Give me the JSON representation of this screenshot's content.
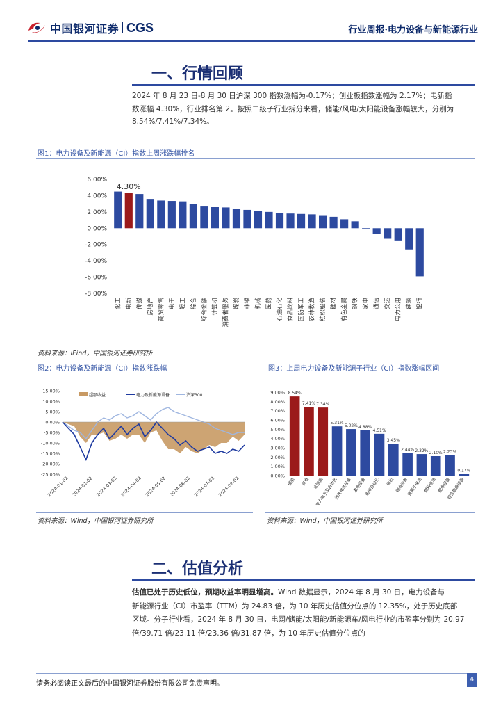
{
  "header": {
    "logo_cn": "中国银河证券",
    "logo_en": "CGS",
    "report_type": "行业周报·电力设备与新能源行业"
  },
  "section1": {
    "title": "一、行情回顾"
  },
  "para1": [
    "2024 年 8 月 23 日-8 月 30 日沪深 300 指数涨幅为-0.17%；创业板指数涨幅为 2.17%；电新指",
    "数涨幅 4.30%，行业排名第 2。按照二级子行业拆分来看，储能/风电/太阳能设备涨幅较大，分别为",
    "8.54%/7.41%/7.34%。"
  ],
  "fig1": {
    "caption": "图1：电力设备及新能源（CI）指数上周涨跌幅排名",
    "source": "资料来源：iFind，中国银河证券研究所"
  },
  "fig2": {
    "caption": "图2：电力设备及新能源（CI）指数涨跌幅",
    "source": "资料来源：Wind，中国银河证券研究所"
  },
  "fig3": {
    "caption": "图3：上周电力设备及新能源子行业（CI）指数涨幅区间",
    "source": "资料来源：Wind，中国银河证券研究所"
  },
  "section2": {
    "title": "二、估值分析"
  },
  "para2": {
    "lead": "估值已处于历史低位，预期收益率明显增高。",
    "lines": [
      "估值已处于历史低位，预期收益率明显增高。Wind 数据显示，2024 年 8 月 30 日，电力设备与",
      "新能源行业（CI）市盈率（TTM）为 24.83 倍，为 10 年历史估值分位点的 12.35%，处于历史底部",
      "区域。分子行业看，2024 年 8 月 30 日，电网/储能/太阳能/新能源车/风电行业的市盈率分别为 20.97",
      "倍/39.71 倍/23.11 倍/23.36 倍/31.87 倍，为 10 年历史估值分位点的"
    ]
  },
  "footer": {
    "disclaimer": "请务必阅读正文最后的中国银河证券股份有限公司免责声明。",
    "page": "4"
  },
  "colors": {
    "primary": "#2d4aa0",
    "highlight": "#9b1a1a",
    "band": "#c89a64",
    "line_index": "#1e3aa0",
    "line_hs300": "#9fb6e0"
  },
  "chart_data": [
    {
      "type": "bar",
      "categories": [
        "化工",
        "电新",
        "传媒",
        "房地产",
        "商贸零售",
        "电子",
        "轻工",
        "综合",
        "综合金融",
        "计算机",
        "消费者服务",
        "煤炭",
        "非银",
        "机械",
        "医药",
        "石油石化",
        "食品饮料",
        "国防军工",
        "农林牧渔",
        "纺织服装",
        "建材",
        "有色金属",
        "钢铁",
        "家电",
        "通信",
        "交运",
        "电力公用",
        "建筑",
        "银行"
      ],
      "values": [
        4.5,
        4.3,
        4.2,
        3.6,
        3.4,
        3.35,
        3.3,
        3.0,
        2.75,
        2.6,
        2.55,
        2.4,
        2.25,
        2.1,
        2.0,
        1.9,
        1.8,
        1.75,
        1.7,
        1.6,
        1.4,
        1.1,
        0.85,
        -0.1,
        -0.7,
        -1.3,
        -1.5,
        -2.6,
        -5.9
      ],
      "highlight_index": 1,
      "highlight_label": "4.30%",
      "yticks": [
        "6.00%",
        "4.00%",
        "2.00%",
        "0.00%",
        "-2.00%",
        "-4.00%",
        "-6.00%",
        "-8.00%"
      ],
      "ylim": [
        -8,
        6
      ]
    },
    {
      "type": "line",
      "legend": [
        "超额收益",
        "电力及新能源设备",
        "沪深300"
      ],
      "xticks": [
        "2024-01-02",
        "2024-02-02",
        "2024-03-02",
        "2024-04-02",
        "2024-05-02",
        "2024-06-02",
        "2024-07-02",
        "2024-08-02"
      ],
      "yticks": [
        "15.00%",
        "10.00%",
        "5.00%",
        "0.00%",
        "-5.00%",
        "-10.00%",
        "-15.00%",
        "-20.00%",
        "-25.00%"
      ],
      "ylim": [
        -25,
        15
      ],
      "series": [
        {
          "name": "电力及新能源设备",
          "values": [
            0,
            -3,
            -6,
            -12,
            -18,
            -10,
            -6,
            -3,
            -8,
            -5,
            -2,
            -6,
            -3,
            -1,
            -7,
            -4,
            0,
            -3,
            -6,
            -8,
            -11,
            -9,
            -12,
            -14,
            -13,
            -12,
            -15,
            -14,
            -15,
            -13,
            -14,
            -11
          ]
        },
        {
          "name": "沪深300",
          "values": [
            0,
            -2,
            -4,
            -5,
            -8,
            -4,
            0,
            2,
            1,
            3,
            4,
            2,
            3,
            5,
            3,
            1,
            4,
            6,
            7,
            5,
            4,
            3,
            2,
            1,
            0,
            -1,
            -3,
            -4,
            -5,
            -6,
            -5,
            -5
          ]
        },
        {
          "name": "超额收益",
          "values": [
            0,
            -1,
            -2,
            -7,
            -10,
            -6,
            -6,
            -5,
            -9,
            -8,
            -6,
            -8,
            -6,
            -6,
            -10,
            -5,
            -4,
            -9,
            -13,
            -13,
            -15,
            -12,
            -14,
            -15,
            -13,
            -11,
            -12,
            -10,
            -10,
            -7,
            -9,
            -6
          ]
        }
      ]
    },
    {
      "type": "bar",
      "categories": [
        "储能",
        "风电",
        "太阳能",
        "电力电子及自动化",
        "光伏电池设备",
        "发电设备",
        "电网自动化",
        "电机",
        "锂电设备",
        "锂离子电池",
        "燃料电池",
        "配电设备",
        "综合能源设备"
      ],
      "values": [
        8.54,
        7.41,
        7.34,
        5.31,
        5.02,
        4.88,
        4.51,
        3.45,
        2.44,
        2.32,
        2.1,
        2.23,
        0.17
      ],
      "labels": [
        "8.54%",
        "7.41%",
        "7.34%",
        "5.31%",
        "5.02%",
        "4.88%",
        "4.51%",
        "3.45%",
        "2.44%",
        "2.32%",
        "2.10%",
        "2.23%",
        "0.17%"
      ],
      "highlight_count": 3,
      "yticks": [
        "9.00%",
        "8.00%",
        "7.00%",
        "6.00%",
        "5.00%",
        "4.00%",
        "3.00%",
        "2.00%",
        "1.00%",
        "0.00%"
      ],
      "ylim": [
        0,
        9
      ]
    }
  ]
}
